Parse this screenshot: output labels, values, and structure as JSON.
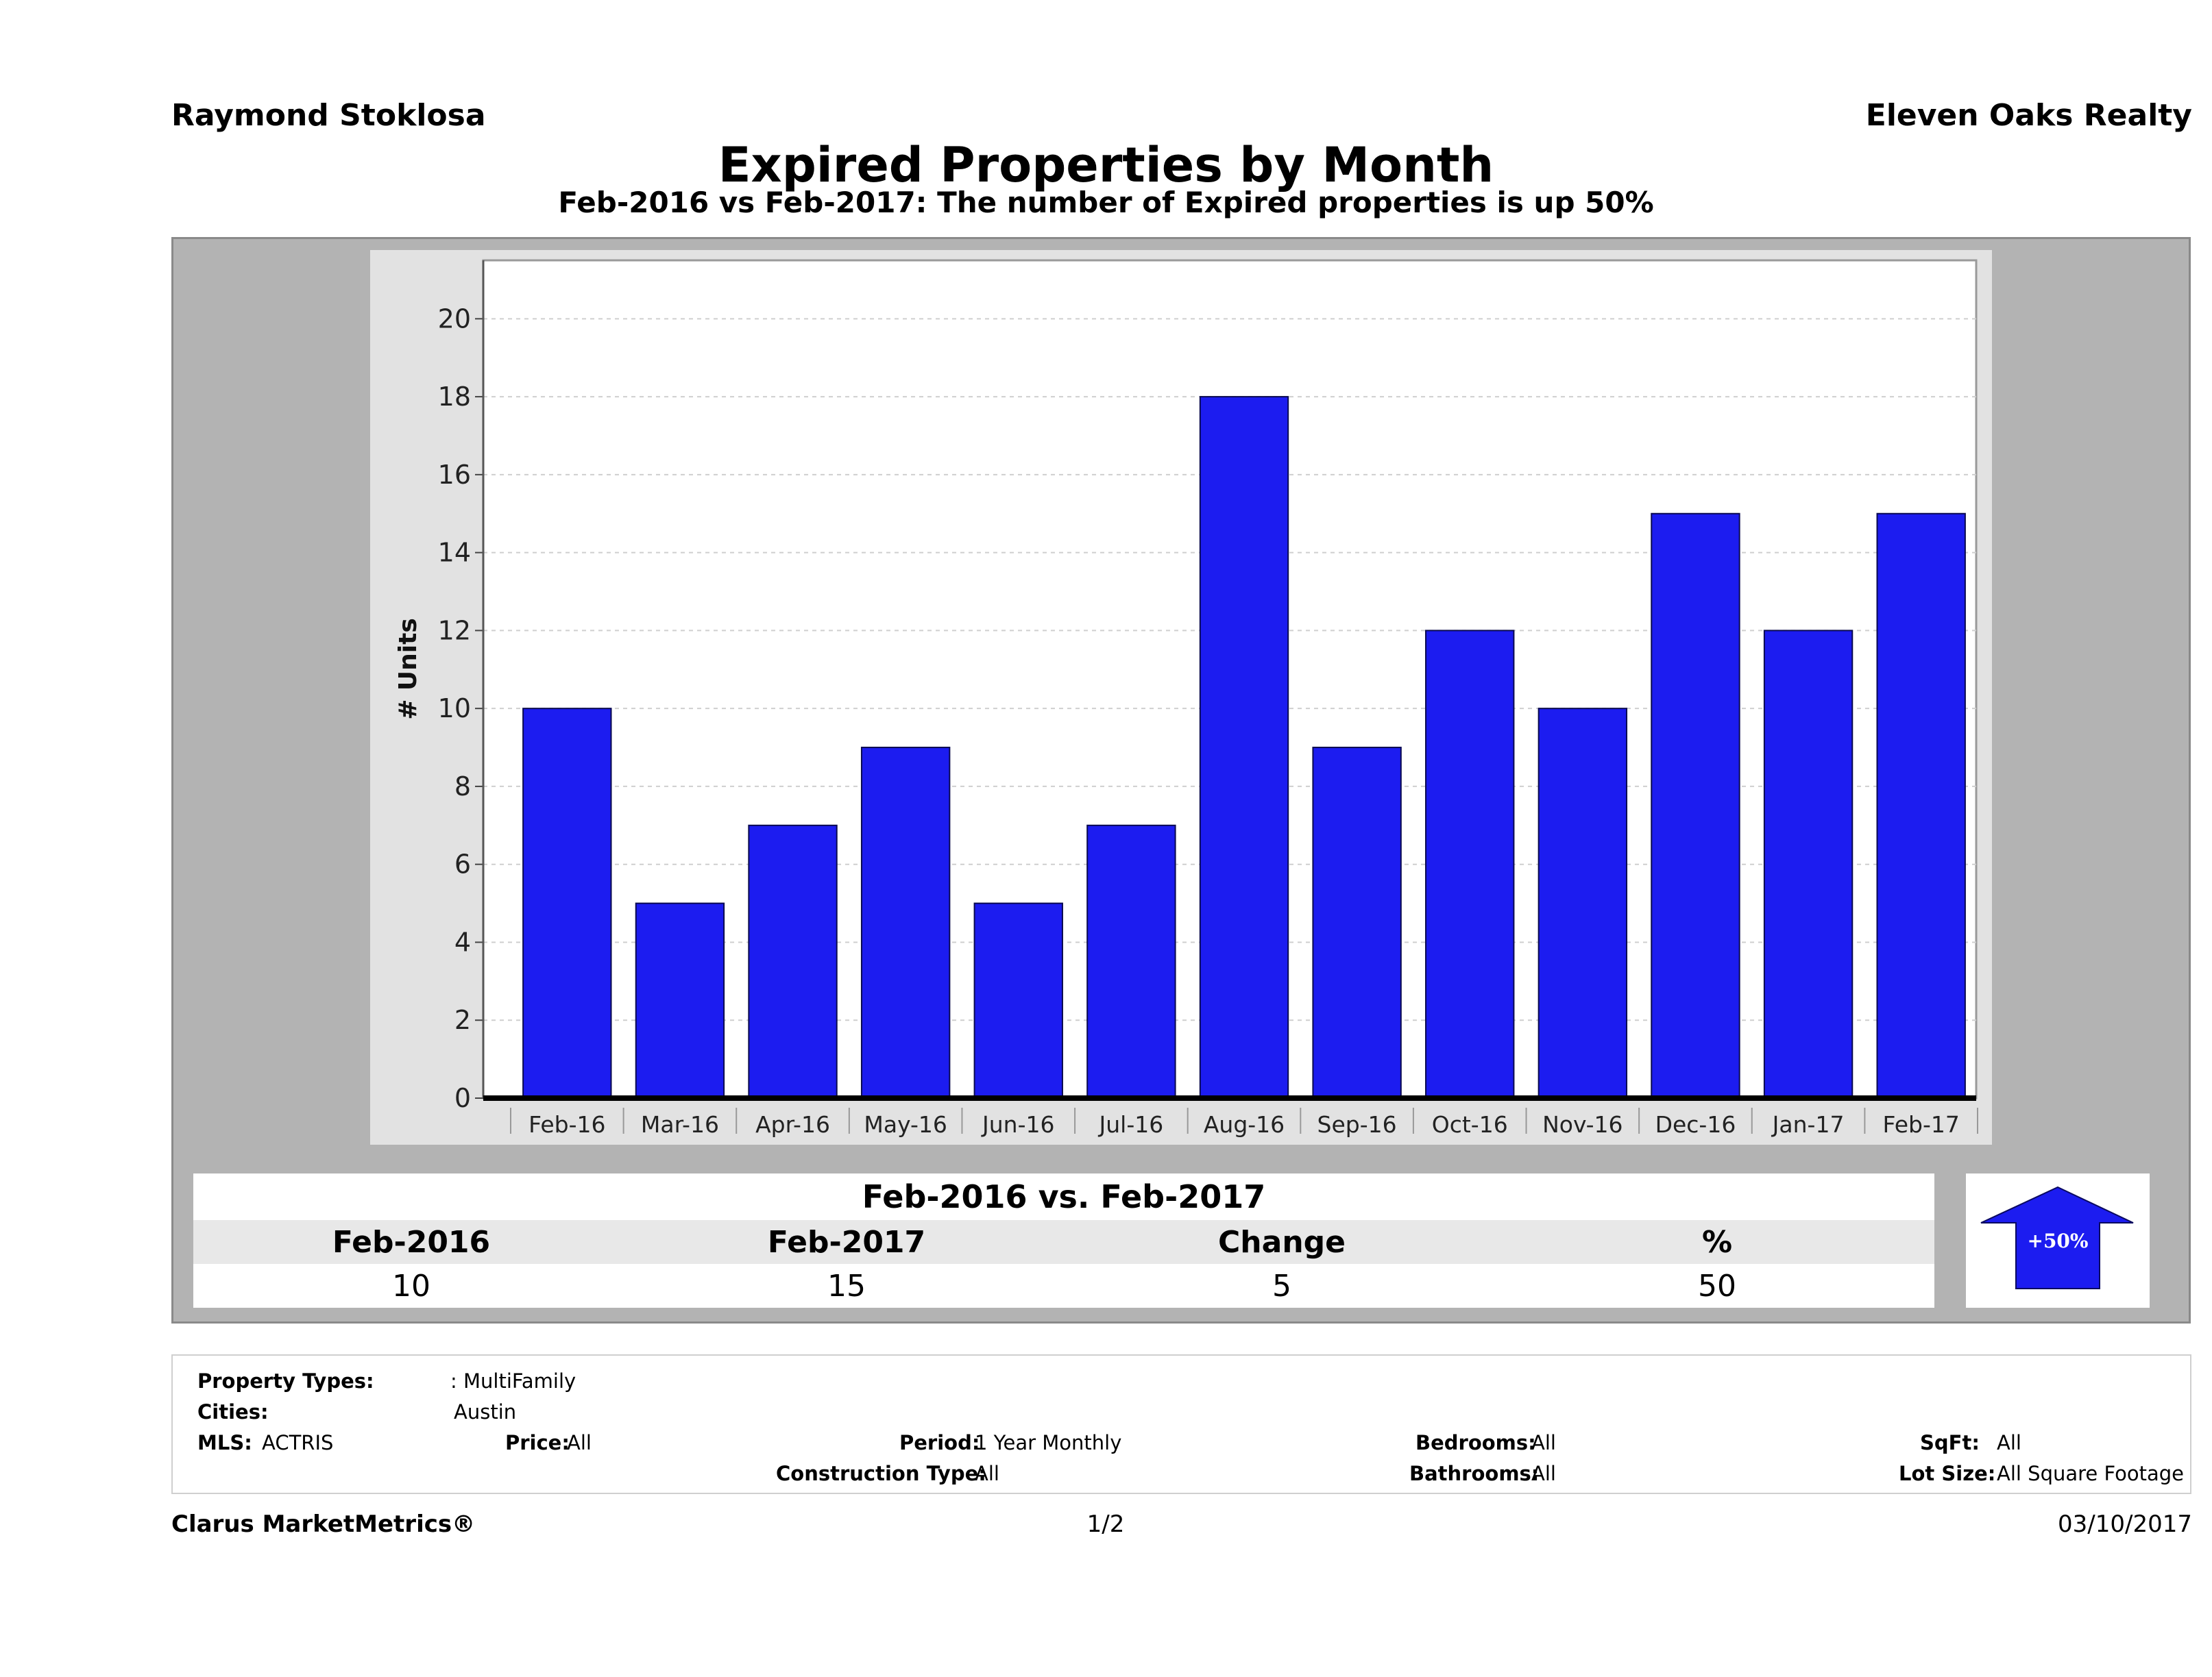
{
  "header": {
    "agent": "Raymond Stoklosa",
    "company": "Eleven Oaks Realty",
    "title": "Expired Properties by Month",
    "subtitle": "Feb-2016 vs Feb-2017: The number of Expired  properties is up 50%"
  },
  "chart_data": {
    "type": "bar",
    "categories": [
      "Feb-16",
      "Mar-16",
      "Apr-16",
      "May-16",
      "Jun-16",
      "Jul-16",
      "Aug-16",
      "Sep-16",
      "Oct-16",
      "Nov-16",
      "Dec-16",
      "Jan-17",
      "Feb-17"
    ],
    "values": [
      10,
      5,
      7,
      9,
      5,
      7,
      18,
      9,
      12,
      10,
      15,
      12,
      15
    ],
    "ylabel": "# Units",
    "xlabel": "",
    "ylim": [
      0,
      21.5
    ],
    "yticks": [
      0,
      2,
      4,
      6,
      8,
      10,
      12,
      14,
      16,
      18,
      20
    ],
    "grid": true,
    "bar_color": "#1c1cf0"
  },
  "summary": {
    "title": "Feb-2016 vs. Feb-2017",
    "headers": [
      "Feb-2016",
      "Feb-2017",
      "Change",
      "%"
    ],
    "values": [
      "10",
      "15",
      "5",
      "50"
    ],
    "badge": "+50%",
    "badge_color": "#1c1cf0"
  },
  "criteria": {
    "property_types_label": "Property Types:",
    "property_types_value": ": MultiFamily",
    "cities_label": "Cities:",
    "cities_value": "Austin",
    "mls_label": "MLS:",
    "mls_value": "ACTRIS",
    "price_label": "Price:",
    "price_value": "All",
    "period_label": "Period:",
    "period_value": "1 Year Monthly",
    "construction_label": "Construction Type:",
    "construction_value": "All",
    "bedrooms_label": "Bedrooms:",
    "bedrooms_value": "All",
    "bathrooms_label": "Bathrooms:",
    "bathrooms_value": "All",
    "sqft_label": "SqFt:",
    "sqft_value": "All",
    "lotsize_label": "Lot Size:",
    "lotsize_value": "All Square Footage"
  },
  "footer": {
    "brand": "Clarus MarketMetrics®",
    "page": "1/2",
    "date": "03/10/2017"
  }
}
